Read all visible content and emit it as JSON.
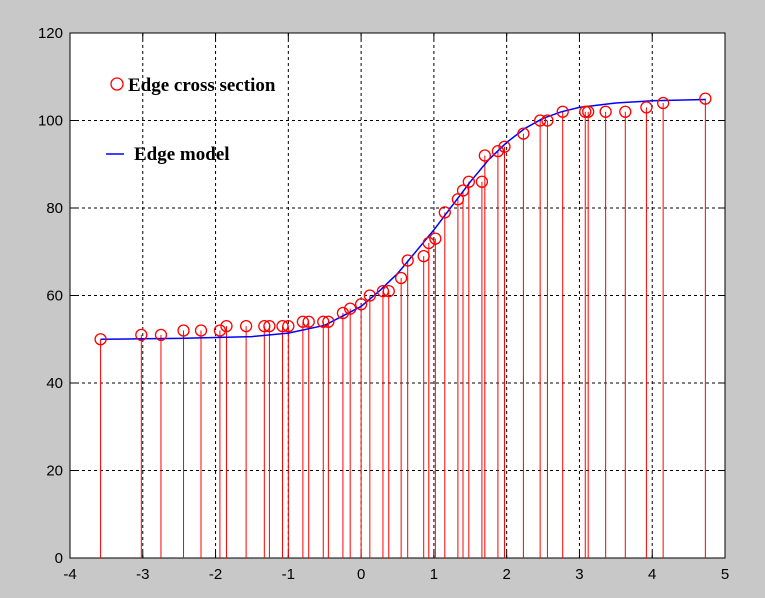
{
  "chart_data": {
    "type": "scatter",
    "title": "",
    "xlabel": "",
    "ylabel": "",
    "xlim": [
      -4,
      5
    ],
    "ylim": [
      0,
      120
    ],
    "xticks": [
      -4,
      -3,
      -2,
      -1,
      0,
      1,
      2,
      3,
      4,
      5
    ],
    "yticks": [
      0,
      20,
      40,
      60,
      80,
      100,
      120
    ],
    "grid": true,
    "legend_position": "top-left",
    "series": [
      {
        "name": "Edge cross section",
        "style": "stem",
        "marker": "circle",
        "color": "#ff0000",
        "points": [
          [
            -3.58,
            50
          ],
          [
            -3.02,
            51
          ],
          [
            -2.75,
            51
          ],
          [
            -2.44,
            52
          ],
          [
            -2.2,
            52
          ],
          [
            -1.94,
            52
          ],
          [
            -1.85,
            53
          ],
          [
            -1.58,
            53
          ],
          [
            -1.33,
            53
          ],
          [
            -1.26,
            53
          ],
          [
            -1.08,
            53
          ],
          [
            -1.0,
            53
          ],
          [
            -0.8,
            54
          ],
          [
            -0.72,
            54
          ],
          [
            -0.52,
            54
          ],
          [
            -0.45,
            54
          ],
          [
            -0.25,
            56
          ],
          [
            -0.15,
            57
          ],
          [
            0.0,
            58
          ],
          [
            0.12,
            60
          ],
          [
            0.3,
            61
          ],
          [
            0.38,
            61
          ],
          [
            0.55,
            64
          ],
          [
            0.64,
            68
          ],
          [
            0.86,
            69
          ],
          [
            0.93,
            72
          ],
          [
            1.02,
            73
          ],
          [
            1.15,
            79
          ],
          [
            1.33,
            82
          ],
          [
            1.4,
            84
          ],
          [
            1.48,
            86
          ],
          [
            1.66,
            86
          ],
          [
            1.7,
            92
          ],
          [
            1.88,
            93
          ],
          [
            1.97,
            94
          ],
          [
            2.23,
            97
          ],
          [
            2.46,
            100
          ],
          [
            2.56,
            100
          ],
          [
            2.77,
            102
          ],
          [
            3.08,
            102
          ],
          [
            3.12,
            102
          ],
          [
            3.36,
            102
          ],
          [
            3.63,
            102
          ],
          [
            3.92,
            103
          ],
          [
            4.15,
            104
          ],
          [
            4.73,
            105
          ]
        ]
      },
      {
        "name": "Edge model",
        "style": "line",
        "color": "#0000ff",
        "points": [
          [
            -3.58,
            50.0
          ],
          [
            -3.0,
            50.1
          ],
          [
            -2.5,
            50.2
          ],
          [
            -2.0,
            50.4
          ],
          [
            -1.5,
            50.6
          ],
          [
            -1.0,
            51.4
          ],
          [
            -0.5,
            53.2
          ],
          [
            0.0,
            57.5
          ],
          [
            0.25,
            61
          ],
          [
            0.5,
            65
          ],
          [
            0.75,
            70
          ],
          [
            1.0,
            75
          ],
          [
            1.25,
            80.5
          ],
          [
            1.5,
            86
          ],
          [
            1.75,
            91
          ],
          [
            2.0,
            95
          ],
          [
            2.25,
            98.2
          ],
          [
            2.5,
            100.5
          ],
          [
            2.75,
            102
          ],
          [
            3.0,
            103
          ],
          [
            3.5,
            104
          ],
          [
            4.0,
            104.5
          ],
          [
            4.73,
            104.8
          ]
        ]
      }
    ]
  },
  "colors": {
    "figure_background": "#c8c8c8",
    "axes_background": "#ffffff",
    "grid": "#000000",
    "stem": "#ff0000",
    "model": "#0000ff"
  }
}
